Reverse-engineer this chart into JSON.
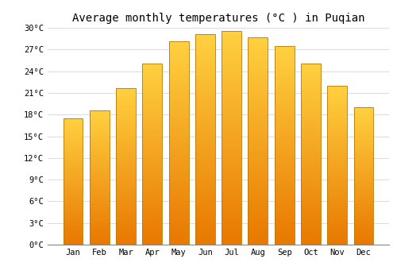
{
  "title": "Average monthly temperatures (°C ) in Puqian",
  "months": [
    "Jan",
    "Feb",
    "Mar",
    "Apr",
    "May",
    "Jun",
    "Jul",
    "Aug",
    "Sep",
    "Oct",
    "Nov",
    "Dec"
  ],
  "temperatures": [
    17.5,
    18.6,
    21.7,
    25.1,
    28.1,
    29.1,
    29.6,
    28.7,
    27.5,
    25.1,
    22.0,
    19.0
  ],
  "bar_color_bottom": "#E87800",
  "bar_color_top": "#FFD040",
  "bar_edge_color": "#B87800",
  "background_color": "#FFFFFF",
  "grid_color": "#DDDDDD",
  "ylim": [
    0,
    30
  ],
  "yticks": [
    0,
    3,
    6,
    9,
    12,
    15,
    18,
    21,
    24,
    27,
    30
  ],
  "ytick_labels": [
    "0°C",
    "3°C",
    "6°C",
    "9°C",
    "12°C",
    "15°C",
    "18°C",
    "21°C",
    "24°C",
    "27°C",
    "30°C"
  ],
  "title_fontsize": 10,
  "tick_fontsize": 7.5,
  "font_family": "monospace",
  "bar_width": 0.75
}
